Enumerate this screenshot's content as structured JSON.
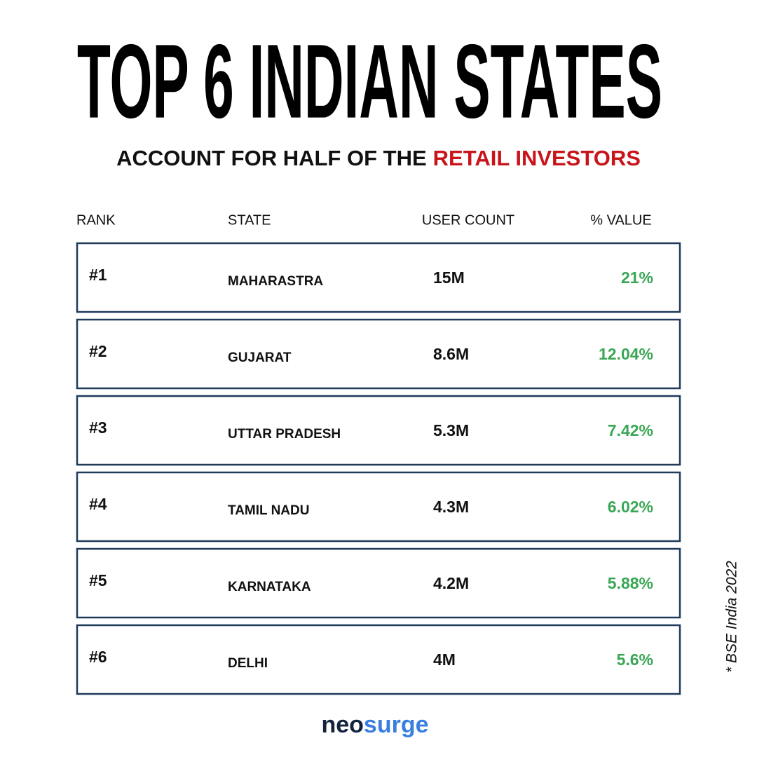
{
  "header": {
    "title": "TOP 6 INDIAN STATES",
    "subtitle_lead": "ACCOUNT FOR HALF OF THE",
    "subtitle_highlight": "RETAIL INVESTORS"
  },
  "table": {
    "columns": [
      "RANK",
      "STATE",
      "USER COUNT",
      "% VALUE"
    ],
    "rows": [
      [
        "#1",
        "MAHARASTRA",
        "15M",
        "21%"
      ],
      [
        "#2",
        "GUJARAT",
        "8.6M",
        "12.04%"
      ],
      [
        "#3",
        "UTTAR PRADESH",
        "5.3M",
        "7.42%"
      ],
      [
        "#4",
        "TAMIL NADU",
        "4.3M",
        "6.02%"
      ],
      [
        "#5",
        "KARNATAKA",
        "4.2M",
        "5.88%"
      ],
      [
        "#6",
        "DELHI",
        "4M",
        "5.6%"
      ]
    ]
  },
  "source": "* BSE India 2022",
  "brand": {
    "part1": "neo",
    "part2": "surge"
  }
}
